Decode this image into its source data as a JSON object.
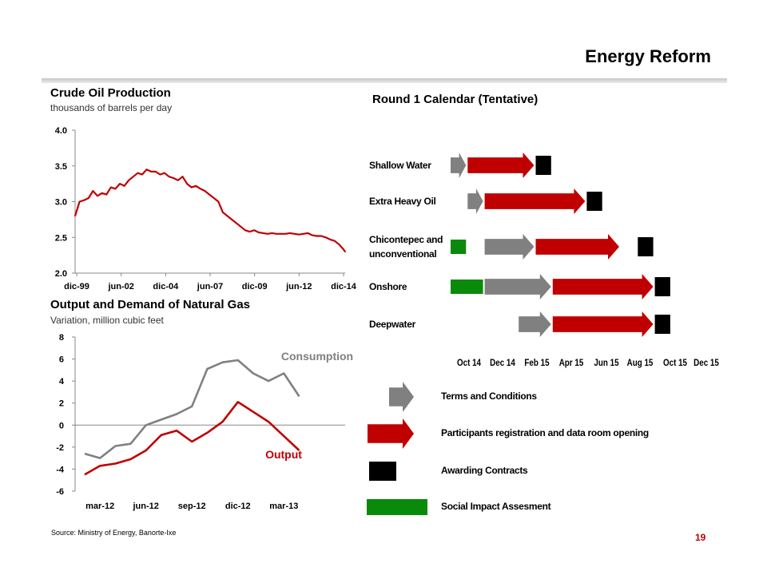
{
  "header": {
    "title": "Energy Reform",
    "page_number": "19"
  },
  "source": "Source: Ministry of Energy, Banorte-Ixe",
  "colors": {
    "red": "#c00000",
    "gray": "#808080",
    "green": "#0a8a0a",
    "black": "#000000"
  },
  "chart_data": [
    {
      "type": "line",
      "title": "Crude Oil Production",
      "subtitle": "thousands of barrels per day",
      "x_ticks": [
        "dic-99",
        "jun-02",
        "dic-04",
        "jun-07",
        "dic-09",
        "jun-12",
        "dic-14"
      ],
      "y_ticks": [
        "4.0",
        "3.5",
        "3.0",
        "2.5",
        "2.0"
      ],
      "ylim": [
        2.0,
        4.0
      ],
      "xlim": [
        "1999-12",
        "2015-01"
      ],
      "grid": false,
      "series": [
        {
          "color": "#c00000",
          "x": [
            "1999-12",
            "2000-03",
            "2000-06",
            "2000-09",
            "2000-12",
            "2001-03",
            "2001-06",
            "2001-09",
            "2001-12",
            "2002-03",
            "2002-06",
            "2002-09",
            "2002-12",
            "2003-03",
            "2003-06",
            "2003-09",
            "2003-12",
            "2004-03",
            "2004-06",
            "2004-09",
            "2004-12",
            "2005-03",
            "2005-06",
            "2005-09",
            "2005-12",
            "2006-03",
            "2006-06",
            "2006-09",
            "2006-12",
            "2007-03",
            "2007-06",
            "2007-09",
            "2007-12",
            "2008-03",
            "2008-06",
            "2008-09",
            "2008-12",
            "2009-03",
            "2009-06",
            "2009-09",
            "2009-12",
            "2010-03",
            "2010-06",
            "2010-09",
            "2010-12",
            "2011-03",
            "2011-06",
            "2011-09",
            "2011-12",
            "2012-03",
            "2012-06",
            "2012-09",
            "2012-12",
            "2013-03",
            "2013-06",
            "2013-09",
            "2013-12",
            "2014-03",
            "2014-06",
            "2014-09",
            "2014-12",
            "2015-01"
          ],
          "y": [
            2.8,
            3.0,
            3.02,
            3.05,
            3.15,
            3.08,
            3.12,
            3.1,
            3.2,
            3.18,
            3.25,
            3.22,
            3.3,
            3.35,
            3.4,
            3.38,
            3.45,
            3.42,
            3.42,
            3.38,
            3.4,
            3.35,
            3.33,
            3.3,
            3.35,
            3.25,
            3.2,
            3.22,
            3.18,
            3.15,
            3.1,
            3.05,
            3.0,
            2.85,
            2.8,
            2.75,
            2.7,
            2.65,
            2.6,
            2.58,
            2.6,
            2.57,
            2.56,
            2.55,
            2.56,
            2.55,
            2.55,
            2.55,
            2.56,
            2.55,
            2.54,
            2.55,
            2.56,
            2.53,
            2.52,
            2.52,
            2.5,
            2.47,
            2.45,
            2.4,
            2.33,
            2.3
          ]
        }
      ]
    },
    {
      "type": "line",
      "title": "Output and Demand of Natural Gas",
      "subtitle": "Variation, million cubic feet",
      "x_ticks": [
        "mar-12",
        "jun-12",
        "sep-12",
        "dic-12",
        "mar-13"
      ],
      "y_ticks": [
        "8",
        "6",
        "4",
        "2",
        "0",
        "-2",
        "-4",
        "-6"
      ],
      "ylim": [
        -6,
        8
      ],
      "xlim": [
        "2012-02",
        "2013-07"
      ],
      "grid": false,
      "series": [
        {
          "name": "Consumption",
          "color": "#808080",
          "x": [
            "2012-02",
            "2012-03",
            "2012-04",
            "2012-05",
            "2012-06",
            "2012-07",
            "2012-08",
            "2012-09",
            "2012-10",
            "2012-11",
            "2012-12",
            "2013-01",
            "2013-02",
            "2013-03",
            "2013-04",
            "2013-05"
          ],
          "y": [
            -2.6,
            -3.0,
            -1.9,
            -1.7,
            0.0,
            0.5,
            1.0,
            1.7,
            5.1,
            5.7,
            5.9,
            4.7,
            4.0,
            4.7,
            2.6,
            null
          ]
        },
        {
          "name": "Output",
          "color": "#c00000",
          "x": [
            "2012-02",
            "2012-03",
            "2012-04",
            "2012-05",
            "2012-06",
            "2012-07",
            "2012-08",
            "2012-09",
            "2012-10",
            "2012-11",
            "2012-12",
            "2013-01",
            "2013-02",
            "2013-03",
            "2013-04",
            "2013-05"
          ],
          "y": [
            -4.5,
            -3.7,
            -3.5,
            -3.1,
            -2.3,
            -0.9,
            -0.5,
            -1.5,
            -0.7,
            0.3,
            2.1,
            1.2,
            0.3,
            -1.0,
            -2.3,
            null
          ]
        }
      ]
    }
  ],
  "calendar": {
    "title": "Round 1 Calendar (Tentative)",
    "months": [
      "Oct 14",
      "Dec 14",
      "Feb 15",
      "Apr 15",
      "Jun 15",
      "Aug 15",
      "Oct 15",
      "Dec 15"
    ],
    "rows": [
      {
        "label": "Shallow Water",
        "bars": [
          {
            "kind": "gray_arrow",
            "start": "2014-10",
            "end": "2014-11"
          },
          {
            "kind": "red_arrow",
            "start": "2014-11",
            "end": "2015-03"
          },
          {
            "kind": "black_box",
            "start": "2015-03",
            "end": "2015-04"
          }
        ]
      },
      {
        "label": "Extra Heavy Oil",
        "bars": [
          {
            "kind": "gray_arrow",
            "start": "2014-11",
            "end": "2014-12"
          },
          {
            "kind": "red_arrow",
            "start": "2014-12",
            "end": "2015-06"
          },
          {
            "kind": "black_box",
            "start": "2015-06",
            "end": "2015-07"
          }
        ]
      },
      {
        "label": "Chicontepec and",
        "label2": "unconventional",
        "bars": [
          {
            "kind": "green_box",
            "start": "2014-10",
            "end": "2014-11"
          },
          {
            "kind": "gray_arrow",
            "start": "2014-12",
            "end": "2015-03"
          },
          {
            "kind": "red_arrow",
            "start": "2015-03",
            "end": "2015-08"
          },
          {
            "kind": "black_box",
            "start": "2015-09",
            "end": "2015-10"
          }
        ]
      },
      {
        "label": "Onshore",
        "bars": [
          {
            "kind": "green_box",
            "start": "2014-10",
            "end": "2014-12"
          },
          {
            "kind": "gray_arrow",
            "start": "2014-12",
            "end": "2015-04"
          },
          {
            "kind": "red_arrow",
            "start": "2015-04",
            "end": "2015-10"
          },
          {
            "kind": "black_box",
            "start": "2015-10",
            "end": "2015-11"
          }
        ]
      },
      {
        "label": "Deepwater",
        "bars": [
          {
            "kind": "gray_arrow",
            "start": "2015-02",
            "end": "2015-04"
          },
          {
            "kind": "red_arrow",
            "start": "2015-04",
            "end": "2015-10"
          },
          {
            "kind": "black_box",
            "start": "2015-10",
            "end": "2015-11"
          }
        ]
      }
    ],
    "legend": [
      {
        "kind": "gray_arrow",
        "label": "Terms and Conditions"
      },
      {
        "kind": "red_arrow",
        "label": "Participants registration and data room opening"
      },
      {
        "kind": "black_box",
        "label": "Awarding Contracts"
      },
      {
        "kind": "green_box",
        "label": "Social Impact Assesment"
      }
    ]
  }
}
